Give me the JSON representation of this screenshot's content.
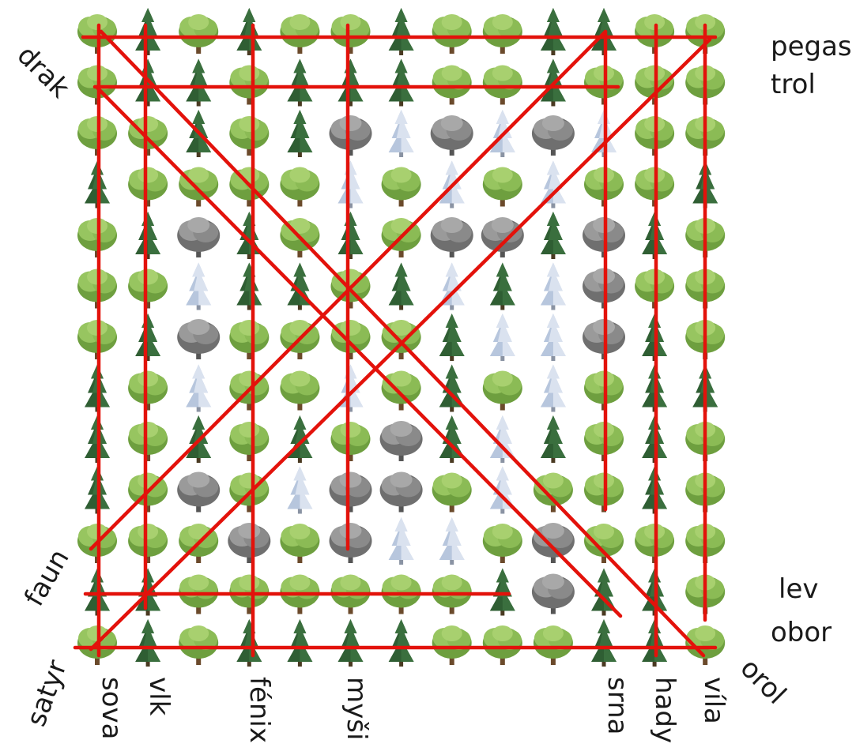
{
  "puzzle": {
    "grid": {
      "rows": 13,
      "cols": 13,
      "cells": [
        "dpdpddpddppdd",
        "dppdpppddpddd",
        "ddpdpbwbwbwdd",
        "pddddwdwdwddp",
        "dpgpdpdggpgpd",
        "ddwppdpwpwgdd",
        "dpgddddpwwgpd",
        "pdwddwdpdwdpp",
        "pdpdpdgpwpdpd",
        "pdgdwggdwddpd",
        "dddgdgwwdgddd",
        "ppddddddpgppd",
        "dpdppppdddppd"
      ]
    },
    "labels": {
      "left": [
        "drak",
        "faun",
        "satyr"
      ],
      "right": [
        "pegas",
        "trol",
        "lev",
        "obor",
        "orol"
      ],
      "bottom": [
        "sova",
        "vlk",
        "fénix",
        "myši",
        "srna",
        "hady",
        "víla"
      ]
    },
    "line_color": "#e3120b",
    "tree_colors": {
      "deciduous": "#8fbf5a",
      "pine": "#2f5e33",
      "gray_deciduous": "#8c8c8c",
      "snowy_pine": "#c6d3e6"
    }
  }
}
